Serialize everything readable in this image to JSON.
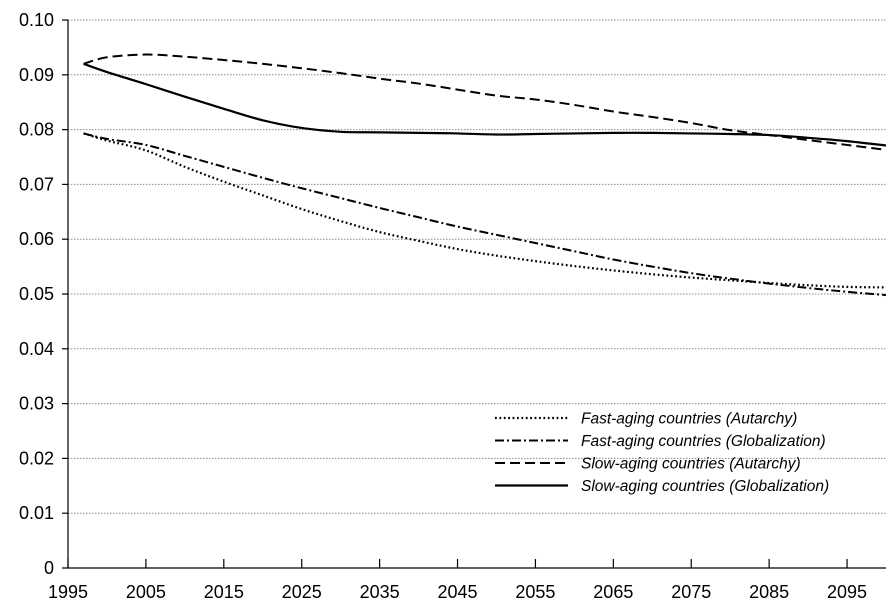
{
  "chart_data": {
    "type": "line",
    "title": "",
    "xlabel": "",
    "ylabel": "",
    "xlim": [
      1995,
      2100
    ],
    "ylim": [
      0,
      0.1
    ],
    "x_ticks": [
      1995,
      2005,
      2015,
      2025,
      2035,
      2045,
      2055,
      2065,
      2075,
      2085,
      2095
    ],
    "x_tick_labels": [
      "1995",
      "2005",
      "2015",
      "2025",
      "2035",
      "2045",
      "2055",
      "2065",
      "2075",
      "2085",
      "2095"
    ],
    "y_ticks": [
      0,
      0.01,
      0.02,
      0.03,
      0.04,
      0.05,
      0.06,
      0.07,
      0.08,
      0.09,
      0.1
    ],
    "y_tick_labels": [
      "0",
      "0.01",
      "0.02",
      "0.03",
      "0.04",
      "0.05",
      "0.06",
      "0.07",
      "0.08",
      "0.09",
      "0.10"
    ],
    "grid": "horizontal",
    "legend_position": "lower-right",
    "series": [
      {
        "name": "Fast-aging countries (Autarchy)",
        "style": "dotted",
        "x": [
          1997,
          2000,
          2005,
          2010,
          2015,
          2020,
          2025,
          2030,
          2035,
          2040,
          2045,
          2050,
          2055,
          2060,
          2065,
          2070,
          2075,
          2080,
          2085,
          2090,
          2095,
          2100
        ],
        "y": [
          0.0793,
          0.078,
          0.0762,
          0.0732,
          0.0705,
          0.068,
          0.0655,
          0.0633,
          0.0613,
          0.0597,
          0.0582,
          0.057,
          0.056,
          0.0551,
          0.0543,
          0.0536,
          0.053,
          0.0525,
          0.052,
          0.0516,
          0.0513,
          0.0512
        ]
      },
      {
        "name": "Fast-aging countries (Globalization)",
        "style": "dash-dot",
        "x": [
          1997,
          2000,
          2005,
          2010,
          2015,
          2020,
          2025,
          2030,
          2035,
          2040,
          2045,
          2050,
          2055,
          2060,
          2065,
          2070,
          2075,
          2080,
          2085,
          2090,
          2095,
          2100
        ],
        "y": [
          0.0793,
          0.0783,
          0.0772,
          0.0752,
          0.0732,
          0.0712,
          0.0693,
          0.0675,
          0.0657,
          0.064,
          0.0623,
          0.0608,
          0.0593,
          0.0578,
          0.0563,
          0.055,
          0.0538,
          0.0528,
          0.0519,
          0.0511,
          0.0504,
          0.0498
        ]
      },
      {
        "name": "Slow-aging countries (Autarchy)",
        "style": "dashed",
        "x": [
          1997,
          2000,
          2005,
          2010,
          2015,
          2020,
          2025,
          2030,
          2035,
          2040,
          2045,
          2050,
          2055,
          2060,
          2065,
          2070,
          2075,
          2080,
          2085,
          2090,
          2095,
          2100
        ],
        "y": [
          0.092,
          0.0932,
          0.0937,
          0.0933,
          0.0927,
          0.092,
          0.0912,
          0.0903,
          0.0893,
          0.0884,
          0.0873,
          0.0862,
          0.0855,
          0.0845,
          0.0833,
          0.0823,
          0.0812,
          0.0799,
          0.079,
          0.0781,
          0.0772,
          0.0763
        ]
      },
      {
        "name": "Slow-aging countries (Globalization)",
        "style": "solid",
        "x": [
          1997,
          2000,
          2005,
          2010,
          2015,
          2020,
          2025,
          2030,
          2035,
          2040,
          2045,
          2050,
          2055,
          2060,
          2065,
          2070,
          2075,
          2080,
          2085,
          2090,
          2095,
          2100
        ],
        "y": [
          0.092,
          0.0905,
          0.0883,
          0.086,
          0.0838,
          0.0817,
          0.0803,
          0.0796,
          0.0795,
          0.0794,
          0.0793,
          0.0791,
          0.0792,
          0.0793,
          0.0794,
          0.0794,
          0.0793,
          0.0792,
          0.079,
          0.0785,
          0.0779,
          0.0771
        ]
      }
    ]
  }
}
